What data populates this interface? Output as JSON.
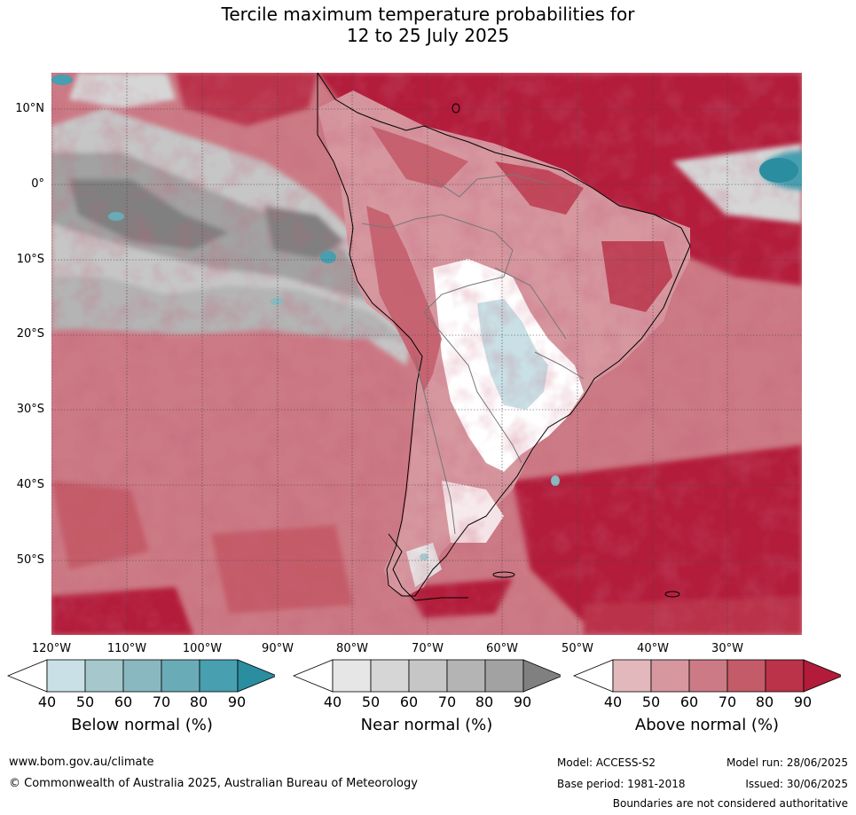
{
  "title": {
    "line1": "Tercile maximum temperature probabilities for",
    "line2": "12 to 25 July 2025"
  },
  "map": {
    "region": "South America",
    "lat_labels": [
      "10°N",
      "0°",
      "10°S",
      "20°S",
      "30°S",
      "40°S",
      "50°S"
    ],
    "lon_labels": [
      "120°W",
      "110°W",
      "100°W",
      "90°W",
      "80°W",
      "70°W",
      "60°W",
      "50°W",
      "40°W",
      "30°W"
    ]
  },
  "legend": {
    "ticks": [
      "40",
      "50",
      "60",
      "70",
      "80",
      "90"
    ],
    "below": {
      "label": "Below normal (%)",
      "colors": [
        "#ffffff",
        "#c9e1e6",
        "#a6c8cd",
        "#89b8c0",
        "#6aabb8",
        "#479fb0",
        "#2a8da0"
      ]
    },
    "near": {
      "label": "Near normal (%)",
      "colors": [
        "#ffffff",
        "#e6e6e6",
        "#d6d6d6",
        "#c6c6c6",
        "#b4b4b4",
        "#a2a2a2",
        "#808080"
      ]
    },
    "above": {
      "label": "Above normal (%)",
      "colors": [
        "#ffffff",
        "#e2b8bd",
        "#d6979f",
        "#cc7a85",
        "#c45b68",
        "#ba3349",
        "#b31b3a"
      ]
    }
  },
  "footer": {
    "website": "www.bom.gov.au/climate",
    "copyright": "© Commonwealth of Australia 2025, Australian Bureau of Meteorology",
    "model": "Model: ACCESS-S2",
    "base_period": "Base period: 1981-2018",
    "model_run": "Model run: 28/06/2025",
    "issued": "Issued: 30/06/2025",
    "disclaimer": "Boundaries are not considered authoritative"
  }
}
